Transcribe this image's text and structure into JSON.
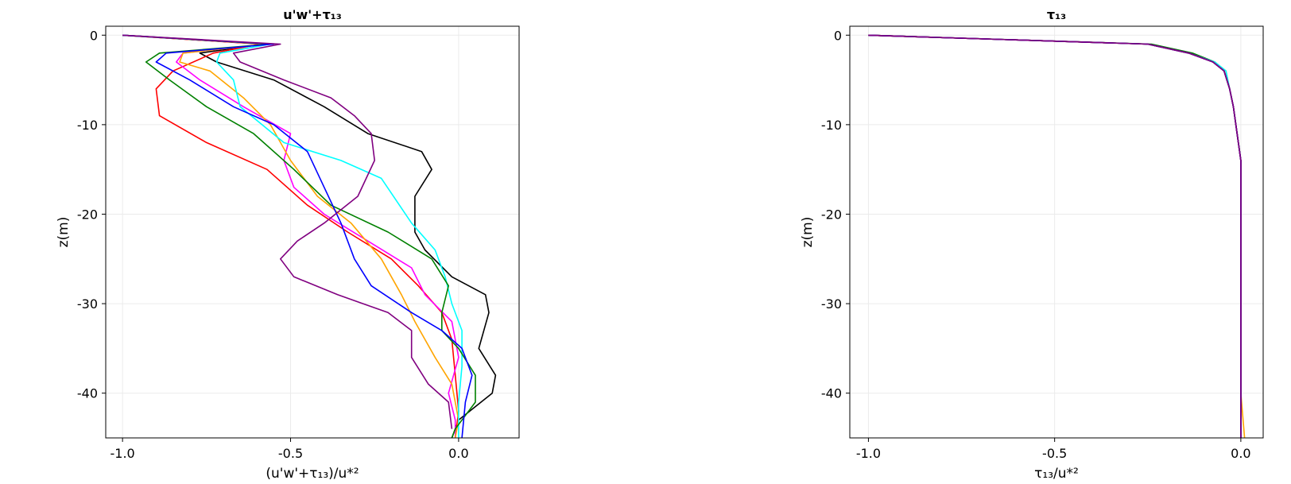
{
  "chart_data": [
    {
      "type": "line",
      "title": "u'w'+τ₁₃",
      "xlabel": "(u'w'+τ₁₃)/u*²",
      "ylabel": "z(m)",
      "xlim": [
        -1.05,
        0.18
      ],
      "ylim": [
        -45,
        1
      ],
      "xticks": [
        -1.0,
        -0.5,
        0.0
      ],
      "xtick_labels": [
        "-1.0",
        "-0.5",
        "0.0"
      ],
      "yticks": [
        0,
        -10,
        -20,
        -30,
        -40
      ],
      "ytick_labels": [
        "0",
        "-10",
        "-20",
        "-30",
        "-40"
      ],
      "grid": true,
      "series": [
        {
          "color": "#000000",
          "points": [
            [
              -1.0,
              0
            ],
            [
              -0.58,
              -1
            ],
            [
              -0.77,
              -2
            ],
            [
              -0.72,
              -3
            ],
            [
              -0.55,
              -5
            ],
            [
              -0.4,
              -8
            ],
            [
              -0.27,
              -11
            ],
            [
              -0.11,
              -13
            ],
            [
              -0.08,
              -15
            ],
            [
              -0.13,
              -18
            ],
            [
              -0.13,
              -22
            ],
            [
              -0.1,
              -24
            ],
            [
              -0.02,
              -27
            ],
            [
              0.08,
              -29
            ],
            [
              0.09,
              -31
            ],
            [
              0.06,
              -35
            ],
            [
              0.11,
              -38
            ],
            [
              0.1,
              -40
            ],
            [
              0.0,
              -43
            ],
            [
              -0.02,
              -45
            ]
          ]
        },
        {
          "color": "#ff0000",
          "points": [
            [
              -1.0,
              0
            ],
            [
              -0.59,
              -1
            ],
            [
              -0.73,
              -2
            ],
            [
              -0.85,
              -4
            ],
            [
              -0.9,
              -6
            ],
            [
              -0.89,
              -9
            ],
            [
              -0.75,
              -12
            ],
            [
              -0.57,
              -15
            ],
            [
              -0.45,
              -19
            ],
            [
              -0.33,
              -22
            ],
            [
              -0.2,
              -25
            ],
            [
              -0.12,
              -28
            ],
            [
              -0.05,
              -31
            ],
            [
              -0.02,
              -34
            ],
            [
              -0.01,
              -38
            ],
            [
              0.0,
              -42
            ],
            [
              -0.01,
              -45
            ]
          ]
        },
        {
          "color": "#ff00ff",
          "points": [
            [
              -1.0,
              0
            ],
            [
              -0.57,
              -1
            ],
            [
              -0.82,
              -2
            ],
            [
              -0.84,
              -3
            ],
            [
              -0.77,
              -5
            ],
            [
              -0.64,
              -8
            ],
            [
              -0.5,
              -11
            ],
            [
              -0.52,
              -14
            ],
            [
              -0.49,
              -17
            ],
            [
              -0.4,
              -20
            ],
            [
              -0.27,
              -23
            ],
            [
              -0.14,
              -26
            ],
            [
              -0.1,
              -29
            ],
            [
              -0.02,
              -32
            ],
            [
              0.0,
              -36
            ],
            [
              -0.03,
              -40
            ],
            [
              -0.01,
              -43
            ],
            [
              -0.01,
              -45
            ]
          ]
        },
        {
          "color": "#ffa500",
          "points": [
            [
              -1.0,
              0
            ],
            [
              -0.57,
              -1
            ],
            [
              -0.82,
              -2
            ],
            [
              -0.83,
              -3
            ],
            [
              -0.74,
              -4
            ],
            [
              -0.64,
              -7
            ],
            [
              -0.56,
              -10
            ],
            [
              -0.5,
              -14
            ],
            [
              -0.42,
              -18
            ],
            [
              -0.32,
              -21
            ],
            [
              -0.23,
              -25
            ],
            [
              -0.17,
              -29
            ],
            [
              -0.13,
              -32
            ],
            [
              -0.07,
              -36
            ],
            [
              -0.02,
              -39
            ],
            [
              0.0,
              -43
            ],
            [
              -0.01,
              -45
            ]
          ]
        },
        {
          "color": "#00ffff",
          "points": [
            [
              -1.0,
              0
            ],
            [
              -0.56,
              -1
            ],
            [
              -0.71,
              -2
            ],
            [
              -0.72,
              -3
            ],
            [
              -0.67,
              -5
            ],
            [
              -0.65,
              -8
            ],
            [
              -0.52,
              -12
            ],
            [
              -0.35,
              -14
            ],
            [
              -0.23,
              -16
            ],
            [
              -0.14,
              -21
            ],
            [
              -0.07,
              -24
            ],
            [
              -0.04,
              -27
            ],
            [
              -0.02,
              -30
            ],
            [
              0.01,
              -33
            ],
            [
              0.01,
              -37
            ],
            [
              0.0,
              -41
            ],
            [
              0.0,
              -45
            ]
          ]
        },
        {
          "color": "#008000",
          "points": [
            [
              -1.0,
              0
            ],
            [
              -0.56,
              -1
            ],
            [
              -0.89,
              -2
            ],
            [
              -0.93,
              -3
            ],
            [
              -0.86,
              -5
            ],
            [
              -0.75,
              -8
            ],
            [
              -0.61,
              -11
            ],
            [
              -0.49,
              -15
            ],
            [
              -0.38,
              -19
            ],
            [
              -0.21,
              -22
            ],
            [
              -0.08,
              -25
            ],
            [
              -0.03,
              -28
            ],
            [
              -0.05,
              -31
            ],
            [
              -0.05,
              -33
            ],
            [
              0.0,
              -35
            ],
            [
              0.05,
              -38
            ],
            [
              0.05,
              -41
            ],
            [
              -0.01,
              -44
            ],
            [
              -0.02,
              -45
            ]
          ]
        },
        {
          "color": "#0000ff",
          "points": [
            [
              -1.0,
              0
            ],
            [
              -0.55,
              -1
            ],
            [
              -0.87,
              -2
            ],
            [
              -0.9,
              -3
            ],
            [
              -0.8,
              -5
            ],
            [
              -0.67,
              -8
            ],
            [
              -0.55,
              -10
            ],
            [
              -0.45,
              -13
            ],
            [
              -0.4,
              -17
            ],
            [
              -0.35,
              -21
            ],
            [
              -0.31,
              -25
            ],
            [
              -0.26,
              -28
            ],
            [
              -0.14,
              -31
            ],
            [
              -0.05,
              -33
            ],
            [
              0.01,
              -35
            ],
            [
              0.04,
              -38
            ],
            [
              0.02,
              -41
            ],
            [
              0.01,
              -45
            ]
          ]
        },
        {
          "color": "#800080",
          "points": [
            [
              -1.0,
              0
            ],
            [
              -0.53,
              -1
            ],
            [
              -0.67,
              -2
            ],
            [
              -0.65,
              -3
            ],
            [
              -0.52,
              -5
            ],
            [
              -0.38,
              -7
            ],
            [
              -0.31,
              -9
            ],
            [
              -0.26,
              -11
            ],
            [
              -0.25,
              -14
            ],
            [
              -0.3,
              -18
            ],
            [
              -0.4,
              -21
            ],
            [
              -0.48,
              -23
            ],
            [
              -0.53,
              -25
            ],
            [
              -0.49,
              -27
            ],
            [
              -0.36,
              -29
            ],
            [
              -0.21,
              -31
            ],
            [
              -0.14,
              -33
            ],
            [
              -0.14,
              -36
            ],
            [
              -0.09,
              -39
            ],
            [
              -0.03,
              -41
            ],
            [
              -0.02,
              -44
            ]
          ]
        }
      ]
    },
    {
      "type": "line",
      "title": "τ₁₃",
      "xlabel": "τ₁₃/u*²",
      "ylabel": "z(m)",
      "xlim": [
        -1.05,
        0.06
      ],
      "ylim": [
        -45,
        1
      ],
      "xticks": [
        -1.0,
        -0.5,
        0.0
      ],
      "xtick_labels": [
        "-1.0",
        "-0.5",
        "0.0"
      ],
      "yticks": [
        0,
        -10,
        -20,
        -30,
        -40
      ],
      "ytick_labels": [
        "0",
        "-10",
        "-20",
        "-30",
        "-40"
      ],
      "grid": true,
      "series": [
        {
          "color": "#ffa500",
          "points": [
            [
              -1.0,
              0
            ],
            [
              -0.25,
              -1
            ],
            [
              -0.14,
              -2
            ],
            [
              -0.07,
              -3
            ],
            [
              -0.04,
              -4
            ],
            [
              -0.03,
              -6
            ],
            [
              -0.02,
              -8
            ],
            [
              -0.01,
              -11
            ],
            [
              0.0,
              -14
            ],
            [
              0.0,
              -20
            ],
            [
              0.0,
              -30
            ],
            [
              0.0,
              -40
            ],
            [
              0.01,
              -45
            ]
          ]
        },
        {
          "color": "#008000",
          "points": [
            [
              -1.0,
              0
            ],
            [
              -0.24,
              -1
            ],
            [
              -0.13,
              -2
            ],
            [
              -0.07,
              -3
            ],
            [
              -0.045,
              -4
            ],
            [
              -0.03,
              -6
            ],
            [
              -0.02,
              -8
            ],
            [
              -0.01,
              -11
            ],
            [
              0.0,
              -14
            ],
            [
              0.0,
              -20
            ],
            [
              0.0,
              -30
            ],
            [
              0.0,
              -40
            ],
            [
              0.0,
              -45
            ]
          ]
        },
        {
          "color": "#00ffff",
          "points": [
            [
              -1.0,
              0
            ],
            [
              -0.25,
              -1
            ],
            [
              -0.14,
              -2
            ],
            [
              -0.07,
              -3
            ],
            [
              -0.04,
              -4
            ],
            [
              -0.03,
              -6
            ],
            [
              -0.02,
              -8
            ],
            [
              -0.01,
              -11
            ],
            [
              0.0,
              -14
            ],
            [
              0.0,
              -20
            ],
            [
              0.0,
              -30
            ],
            [
              0.0,
              -40
            ],
            [
              0.0,
              -45
            ]
          ]
        },
        {
          "color": "#ff00ff",
          "points": [
            [
              -1.0,
              0
            ],
            [
              -0.25,
              -1
            ],
            [
              -0.14,
              -2
            ],
            [
              -0.075,
              -3
            ],
            [
              -0.045,
              -4
            ],
            [
              -0.03,
              -6
            ],
            [
              -0.02,
              -8
            ],
            [
              -0.01,
              -11
            ],
            [
              0.0,
              -14
            ],
            [
              0.0,
              -20
            ],
            [
              0.0,
              -30
            ],
            [
              0.0,
              -40
            ],
            [
              0.0,
              -45
            ]
          ]
        },
        {
          "color": "#ff0000",
          "points": [
            [
              -1.0,
              0
            ],
            [
              -0.25,
              -1
            ],
            [
              -0.14,
              -2
            ],
            [
              -0.075,
              -3
            ],
            [
              -0.045,
              -4
            ],
            [
              -0.03,
              -6
            ],
            [
              -0.02,
              -8
            ],
            [
              -0.01,
              -11
            ],
            [
              0.0,
              -14
            ],
            [
              0.0,
              -20
            ],
            [
              0.0,
              -30
            ],
            [
              0.0,
              -40
            ],
            [
              0.0,
              -45
            ]
          ]
        },
        {
          "color": "#000000",
          "points": [
            [
              -1.0,
              0
            ],
            [
              -0.25,
              -1
            ],
            [
              -0.14,
              -2
            ],
            [
              -0.075,
              -3
            ],
            [
              -0.045,
              -4
            ],
            [
              -0.03,
              -6
            ],
            [
              -0.02,
              -8
            ],
            [
              -0.01,
              -11
            ],
            [
              0.0,
              -14
            ],
            [
              0.0,
              -20
            ],
            [
              0.0,
              -30
            ],
            [
              0.0,
              -40
            ],
            [
              0.0,
              -45
            ]
          ]
        },
        {
          "color": "#0000ff",
          "points": [
            [
              -1.0,
              0
            ],
            [
              -0.25,
              -1
            ],
            [
              -0.14,
              -2
            ],
            [
              -0.075,
              -3
            ],
            [
              -0.045,
              -4
            ],
            [
              -0.03,
              -6
            ],
            [
              -0.02,
              -8
            ],
            [
              -0.01,
              -11
            ],
            [
              0.0,
              -14
            ],
            [
              0.0,
              -20
            ],
            [
              0.0,
              -30
            ],
            [
              0.0,
              -40
            ],
            [
              0.0,
              -45
            ]
          ]
        },
        {
          "color": "#800080",
          "points": [
            [
              -1.0,
              0
            ],
            [
              -0.25,
              -1
            ],
            [
              -0.14,
              -2
            ],
            [
              -0.075,
              -3
            ],
            [
              -0.045,
              -4
            ],
            [
              -0.03,
              -6
            ],
            [
              -0.02,
              -8
            ],
            [
              -0.01,
              -11
            ],
            [
              0.0,
              -14
            ],
            [
              0.0,
              -20
            ],
            [
              0.0,
              -30
            ],
            [
              0.0,
              -40
            ],
            [
              0.0,
              -45
            ]
          ]
        }
      ]
    }
  ]
}
